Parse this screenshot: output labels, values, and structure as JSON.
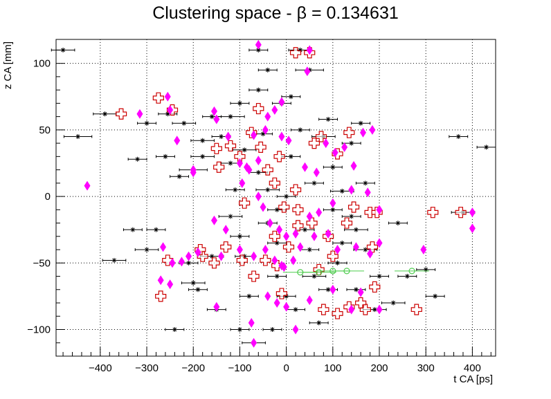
{
  "chart_data": {
    "type": "scatter",
    "title": "Clustering space -  β = 0.134631",
    "xlabel": "t CA [ps]",
    "ylabel": "z CA [mm]",
    "xlim": [
      -495,
      450
    ],
    "ylim": [
      -120,
      118
    ],
    "x_ticks": [
      -400,
      -300,
      -200,
      -100,
      0,
      100,
      200,
      300,
      400
    ],
    "y_ticks": [
      -100,
      -50,
      0,
      50,
      100
    ],
    "grid": true,
    "colors": {
      "black_points": "#000000",
      "red_cross": "#cc0000",
      "magenta_diamond": "#ff00ff",
      "green_circle": "#4ccc4c"
    },
    "series": [
      {
        "marker": "star",
        "color": "#000000",
        "points": [
          [
            -480,
            110,
            25
          ],
          [
            -448,
            45,
            30
          ],
          [
            -390,
            62,
            25
          ],
          [
            -320,
            28,
            20
          ],
          [
            -255,
            62,
            20
          ],
          [
            -220,
            55,
            25
          ],
          [
            -200,
            20,
            30
          ],
          [
            -180,
            42,
            25
          ],
          [
            -160,
            60,
            20
          ],
          [
            -120,
            60,
            30
          ],
          [
            -90,
            35,
            25
          ],
          [
            -60,
            18,
            20
          ],
          [
            -40,
            5,
            25
          ],
          [
            -20,
            -10,
            20
          ],
          [
            10,
            30,
            20
          ],
          [
            30,
            50,
            20
          ],
          [
            50,
            95,
            30
          ],
          [
            80,
            45,
            25
          ],
          [
            100,
            22,
            20
          ],
          [
            120,
            4,
            25
          ],
          [
            140,
            -15,
            20
          ],
          [
            170,
            -40,
            25
          ],
          [
            200,
            -60,
            20
          ],
          [
            230,
            -80,
            25
          ],
          [
            260,
            -60,
            20
          ],
          [
            30,
            110,
            25
          ],
          [
            -40,
            95,
            20
          ],
          [
            -60,
            110,
            20
          ],
          [
            -120,
            -15,
            25
          ],
          [
            -160,
            -45,
            25
          ],
          [
            -200,
            -65,
            25
          ],
          [
            -240,
            -100,
            20
          ],
          [
            -300,
            -40,
            25
          ],
          [
            -330,
            -25,
            20
          ],
          [
            -370,
            -48,
            25
          ],
          [
            -100,
            -100,
            20
          ],
          [
            -70,
            -110,
            25
          ],
          [
            -30,
            -100,
            20
          ],
          [
            0,
            -75,
            20
          ],
          [
            20,
            -85,
            20
          ],
          [
            60,
            -60,
            25
          ],
          [
            90,
            -70,
            20
          ],
          [
            120,
            -35,
            20
          ],
          [
            150,
            -25,
            25
          ],
          [
            60,
            10,
            20
          ],
          [
            -10,
            70,
            20
          ],
          [
            -60,
            80,
            20
          ],
          [
            -100,
            70,
            20
          ],
          [
            -140,
            45,
            20
          ],
          [
            -180,
            30,
            25
          ],
          [
            -230,
            15,
            20
          ],
          [
            -280,
            -25,
            20
          ],
          [
            -210,
            -50,
            20
          ],
          [
            -150,
            -85,
            20
          ],
          [
            -90,
            -45,
            20
          ],
          [
            -20,
            -35,
            20
          ],
          [
            40,
            -25,
            20
          ],
          [
            110,
            -50,
            20
          ],
          [
            150,
            -70,
            20
          ],
          [
            190,
            -85,
            25
          ],
          [
            240,
            -20,
            20
          ],
          [
            320,
            -75,
            20
          ],
          [
            380,
            -12,
            25
          ],
          [
            430,
            37,
            20
          ],
          [
            370,
            45,
            20
          ],
          [
            300,
            -55,
            20
          ],
          [
            10,
            75,
            20
          ],
          [
            -50,
            47,
            20
          ],
          [
            90,
            58,
            20
          ],
          [
            170,
            10,
            20
          ],
          [
            -100,
            -30,
            20
          ],
          [
            -190,
            -70,
            20
          ],
          [
            70,
            -95,
            20
          ],
          [
            -40,
            -20,
            20
          ],
          [
            0,
            0,
            20
          ],
          [
            100,
            -10,
            20
          ],
          [
            -260,
            30,
            20
          ],
          [
            -120,
            25,
            20
          ],
          [
            140,
            40,
            20
          ],
          [
            -300,
            55,
            20
          ],
          [
            -20,
            -60,
            20
          ],
          [
            50,
            -40,
            20
          ],
          [
            -80,
            -75,
            20
          ],
          [
            -110,
            5,
            20
          ],
          [
            160,
            55,
            20
          ]
        ]
      },
      {
        "marker": "open-cross",
        "color": "#cc0000",
        "points": [
          [
            -355,
            62
          ],
          [
            -275,
            74
          ],
          [
            -245,
            65
          ],
          [
            -150,
            36
          ],
          [
            -145,
            22
          ],
          [
            -120,
            38
          ],
          [
            -100,
            30
          ],
          [
            -60,
            66
          ],
          [
            -55,
            37
          ],
          [
            -25,
            10
          ],
          [
            -15,
            30
          ],
          [
            -5,
            -8
          ],
          [
            20,
            5
          ],
          [
            60,
            40
          ],
          [
            75,
            45
          ],
          [
            110,
            32
          ],
          [
            135,
            48
          ],
          [
            145,
            -8
          ],
          [
            180,
            -12
          ],
          [
            195,
            -12
          ],
          [
            315,
            -12
          ],
          [
            375,
            -12
          ],
          [
            -255,
            -48
          ],
          [
            -180,
            -45
          ],
          [
            -130,
            -38
          ],
          [
            -95,
            -48
          ],
          [
            -45,
            -48
          ],
          [
            -25,
            -30
          ],
          [
            5,
            -38
          ],
          [
            25,
            -22
          ],
          [
            90,
            -30
          ],
          [
            100,
            -45
          ],
          [
            185,
            -38
          ],
          [
            -70,
            -60
          ],
          [
            -10,
            -73
          ],
          [
            80,
            -85
          ],
          [
            110,
            -88
          ],
          [
            135,
            -83
          ],
          [
            170,
            -85
          ],
          [
            280,
            -85
          ],
          [
            -270,
            -75
          ],
          [
            -185,
            -40
          ],
          [
            20,
            108
          ],
          [
            50,
            108
          ],
          [
            -75,
            48
          ],
          [
            25,
            -10
          ],
          [
            190,
            -68
          ],
          [
            160,
            -80
          ],
          [
            -40,
            20
          ],
          [
            55,
            -20
          ],
          [
            -155,
            -50
          ],
          [
            -90,
            -5
          ],
          [
            130,
            -20
          ],
          [
            70,
            -55
          ],
          [
            -20,
            -52
          ]
        ]
      },
      {
        "marker": "diamond",
        "color": "#ff00ff",
        "points": [
          [
            -428,
            8
          ],
          [
            -315,
            62
          ],
          [
            -255,
            75
          ],
          [
            -250,
            65
          ],
          [
            -235,
            42
          ],
          [
            -200,
            20
          ],
          [
            -200,
            18
          ],
          [
            -155,
            64
          ],
          [
            -150,
            58
          ],
          [
            -125,
            45
          ],
          [
            -100,
            25
          ],
          [
            -85,
            22
          ],
          [
            -70,
            46
          ],
          [
            -60,
            27
          ],
          [
            -45,
            50
          ],
          [
            -40,
            60
          ],
          [
            -25,
            65
          ],
          [
            -10,
            71
          ],
          [
            -10,
            45
          ],
          [
            5,
            42
          ],
          [
            40,
            22
          ],
          [
            65,
            18
          ],
          [
            85,
            40
          ],
          [
            105,
            33
          ],
          [
            125,
            37
          ],
          [
            145,
            23
          ],
          [
            165,
            48
          ],
          [
            185,
            50
          ],
          [
            -60,
            114
          ],
          [
            50,
            110
          ],
          [
            45,
            94
          ],
          [
            -95,
            10
          ],
          [
            -80,
            20
          ],
          [
            -60,
            0
          ],
          [
            -50,
            -8
          ],
          [
            -35,
            -20
          ],
          [
            -15,
            -25
          ],
          [
            0,
            -30
          ],
          [
            20,
            -28
          ],
          [
            50,
            -15
          ],
          [
            70,
            -12
          ],
          [
            100,
            -5
          ],
          [
            140,
            5
          ],
          [
            175,
            3
          ],
          [
            200,
            -10
          ],
          [
            400,
            -12
          ],
          [
            400,
            -24
          ],
          [
            -155,
            -18
          ],
          [
            -130,
            -25
          ],
          [
            -190,
            -42
          ],
          [
            -210,
            -45
          ],
          [
            -225,
            -49
          ],
          [
            -245,
            -50
          ],
          [
            -265,
            -38
          ],
          [
            -270,
            -63
          ],
          [
            -250,
            -66
          ],
          [
            -140,
            -45
          ],
          [
            -100,
            -40
          ],
          [
            -70,
            -45
          ],
          [
            -45,
            -40
          ],
          [
            -25,
            -48
          ],
          [
            -10,
            -52
          ],
          [
            15,
            -48
          ],
          [
            30,
            -38
          ],
          [
            60,
            -30
          ],
          [
            90,
            -28
          ],
          [
            110,
            -40
          ],
          [
            150,
            -38
          ],
          [
            180,
            -43
          ],
          [
            200,
            -35
          ],
          [
            295,
            -40
          ],
          [
            -150,
            -83
          ],
          [
            -75,
            -95
          ],
          [
            -70,
            -110
          ],
          [
            -40,
            -75
          ],
          [
            -20,
            -80
          ],
          [
            0,
            -83
          ],
          [
            20,
            -100
          ],
          [
            50,
            -78
          ],
          [
            100,
            -70
          ],
          [
            140,
            -85
          ],
          [
            160,
            -72
          ],
          [
            200,
            -85
          ],
          [
            -5,
            -53
          ]
        ]
      },
      {
        "marker": "open-circle",
        "color": "#4ccc4c",
        "points": [
          [
            30,
            -57
          ],
          [
            70,
            -57
          ],
          [
            100,
            -56
          ],
          [
            130,
            -56
          ],
          [
            270,
            -56
          ]
        ]
      }
    ]
  }
}
